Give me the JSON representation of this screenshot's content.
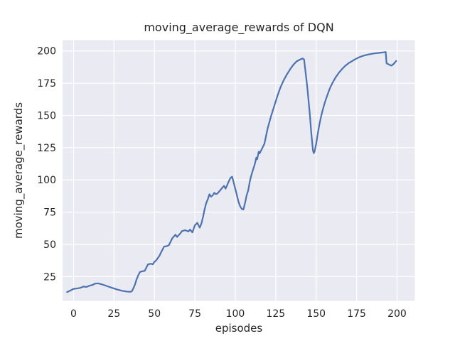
{
  "chart_data": {
    "type": "line",
    "title": "moving_average_rewards of DQN",
    "xlabel": "episodes",
    "ylabel": "moving_average_rewards",
    "xlim": [
      -6.8,
      211.0
    ],
    "ylim": [
      6.2,
      208.4
    ],
    "xticks": [
      0,
      25,
      50,
      75,
      100,
      125,
      150,
      175,
      200
    ],
    "yticks": [
      25,
      50,
      75,
      100,
      125,
      150,
      175,
      200
    ],
    "grid": true,
    "legend": "none",
    "style": "seaborn-darkgrid",
    "colors": {
      "line": "#4c72b0",
      "axes_background": "#eaeaf2",
      "grid": "#ffffff",
      "text": "#262626",
      "figure_background": "#ffffff"
    },
    "series": [
      {
        "name": "moving_average_rewards",
        "x": [
          -4,
          -2,
          0,
          2,
          4,
          6,
          8,
          10,
          12,
          13,
          15,
          17,
          19,
          21,
          24,
          27,
          30,
          33,
          35,
          36,
          37,
          38,
          39,
          40,
          41,
          42,
          44,
          45,
          46,
          48,
          49,
          50,
          51,
          53,
          54,
          55,
          56,
          58,
          59,
          61,
          63,
          64,
          66,
          67,
          69,
          71,
          72,
          73.5,
          75,
          76.5,
          78,
          79,
          80,
          81,
          82,
          83,
          84,
          85,
          86,
          87,
          88,
          89,
          91,
          92,
          93,
          94,
          95,
          96,
          97,
          98,
          99,
          100,
          101,
          102,
          103,
          104,
          105,
          106,
          107,
          108,
          109,
          110,
          111,
          112,
          113,
          113.5,
          114,
          114.5,
          115,
          116,
          117,
          118,
          120,
          122,
          124,
          126,
          128,
          130,
          132,
          134,
          136,
          138,
          140,
          141.5,
          142.5,
          143.5,
          144.5,
          146,
          147,
          148,
          148.5,
          149,
          150,
          151,
          152,
          153,
          154,
          155,
          156,
          157,
          158,
          159,
          160,
          162,
          164,
          166,
          168,
          170,
          172,
          174,
          176,
          178,
          180,
          182,
          184,
          186,
          188,
          190,
          192,
          193,
          193.5,
          194.5,
          195.5,
          196.5,
          197.5,
          198.5,
          199.5
        ],
        "y": [
          13,
          14.2,
          15.5,
          15.8,
          16.2,
          17.3,
          17,
          18,
          18.6,
          19.5,
          19.8,
          19.2,
          18.4,
          17.5,
          16.2,
          15,
          14,
          13.4,
          13.2,
          13.6,
          16,
          19,
          23,
          26,
          28.5,
          29,
          29.5,
          32,
          34.5,
          35,
          34.5,
          36.5,
          37.5,
          41,
          43.5,
          46,
          48.3,
          48.8,
          49.5,
          54.7,
          57.5,
          55.8,
          58.5,
          60.3,
          61,
          60,
          61.5,
          59.3,
          64.8,
          66.7,
          63,
          66,
          71,
          77,
          82,
          85,
          88.9,
          87,
          88,
          90,
          89,
          89.5,
          92.5,
          94,
          95.4,
          93.2,
          96,
          99,
          101.5,
          102.5,
          98,
          93,
          88,
          83,
          79.5,
          77.5,
          77,
          82,
          88,
          92,
          99,
          104,
          108,
          112,
          117.3,
          116,
          119,
          121.9,
          120.5,
          123,
          125.5,
          128,
          140,
          149,
          157,
          165,
          172,
          177.5,
          182,
          186,
          189.5,
          192,
          193.3,
          194.2,
          193.5,
          183,
          172,
          152,
          136,
          123,
          120.7,
          122,
          128,
          136,
          143,
          149,
          154,
          158.5,
          162.5,
          166,
          169.5,
          172.5,
          175,
          179.5,
          183,
          186,
          188.5,
          190.5,
          192,
          193.5,
          194.8,
          195.8,
          196.6,
          197.2,
          197.7,
          198.1,
          198.4,
          198.7,
          199,
          199.2,
          190.5,
          189.8,
          189.2,
          188.6,
          189.5,
          190.8,
          192.3
        ]
      }
    ]
  }
}
